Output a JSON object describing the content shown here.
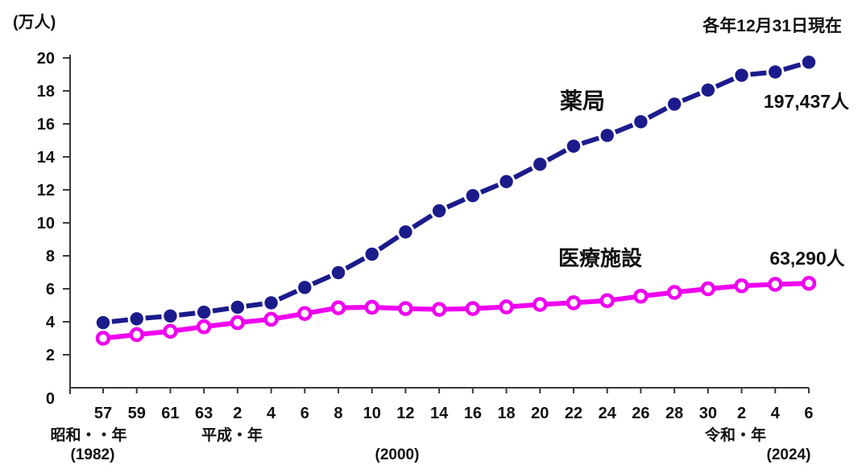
{
  "chart_data": {
    "type": "line",
    "note": "各年12月31日現在",
    "unit": "(万人)",
    "ylim": [
      0,
      20
    ],
    "ytick_step": 2,
    "grid": false,
    "legend_position": "inline-labels",
    "categories": [
      "57",
      "59",
      "61",
      "63",
      "2",
      "4",
      "6",
      "8",
      "10",
      "12",
      "14",
      "16",
      "18",
      "20",
      "22",
      "24",
      "26",
      "28",
      "30",
      "2",
      "4",
      "6"
    ],
    "series": [
      {
        "name": "pharmacy",
        "label": "薬局",
        "end_label": "197,437人",
        "color": "#1b1b8c",
        "marker": "filled-circle",
        "line_style": "dashed-between-markers",
        "values": [
          3.95,
          4.18,
          4.35,
          4.58,
          4.88,
          5.15,
          6.08,
          6.98,
          8.1,
          9.45,
          10.73,
          11.65,
          12.5,
          13.55,
          14.65,
          15.3,
          16.13,
          17.2,
          18.05,
          18.95,
          19.15,
          19.74
        ]
      },
      {
        "name": "medical",
        "label": "医療施設",
        "end_label": "63,290人",
        "color": "#ee00ee",
        "marker": "open-circle",
        "line_style": "solid",
        "values": [
          3.0,
          3.22,
          3.42,
          3.7,
          3.95,
          4.15,
          4.5,
          4.85,
          4.88,
          4.8,
          4.75,
          4.8,
          4.9,
          5.05,
          5.15,
          5.28,
          5.55,
          5.78,
          6.0,
          6.18,
          6.27,
          6.33
        ]
      }
    ],
    "x_axis": {
      "era_labels": [
        {
          "text": "昭和・・年"
        },
        {
          "text": "平成・年"
        },
        {
          "text": "令和・年"
        }
      ],
      "year_labels": [
        {
          "text": "(1982)"
        },
        {
          "text": "(2000)"
        },
        {
          "text": "(2024)"
        }
      ]
    },
    "colors": {
      "pharmacy": "#1b1b8c",
      "medical": "#ee00ee",
      "axis": "#3a3a3a",
      "text": "#111111"
    }
  }
}
